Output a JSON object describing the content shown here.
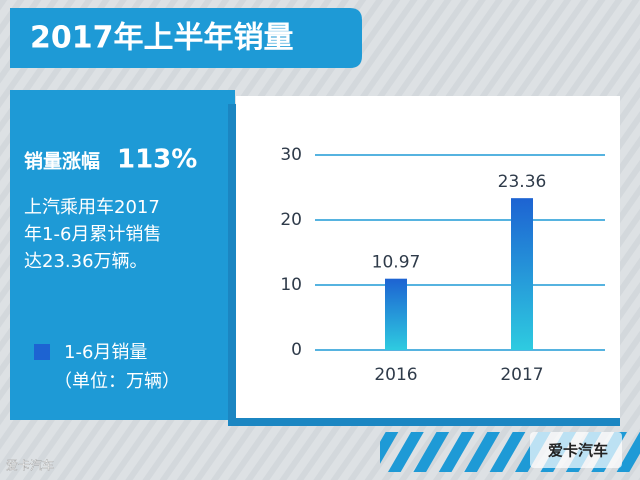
{
  "header": {
    "title": "2017年上半年销量"
  },
  "highlight": {
    "label": "销量涨幅",
    "value": "113%"
  },
  "description": [
    "上汽乘用车2017",
    "年1-6月累计销售",
    "达23.36万辆。"
  ],
  "unit_note": "（单位：万辆）",
  "chart_data": {
    "type": "bar",
    "categories": [
      "2016",
      "2017"
    ],
    "series": [
      {
        "name": "1-6月销量",
        "color": "#1d63d2",
        "values": [
          10.97,
          23.36
        ]
      }
    ],
    "ylim": [
      0,
      30
    ],
    "yticks": [
      0,
      10,
      20,
      30
    ],
    "grid": true,
    "show_value_labels": true
  },
  "watermarks": [
    "爱卡汽车",
    "爱卡汽车"
  ]
}
